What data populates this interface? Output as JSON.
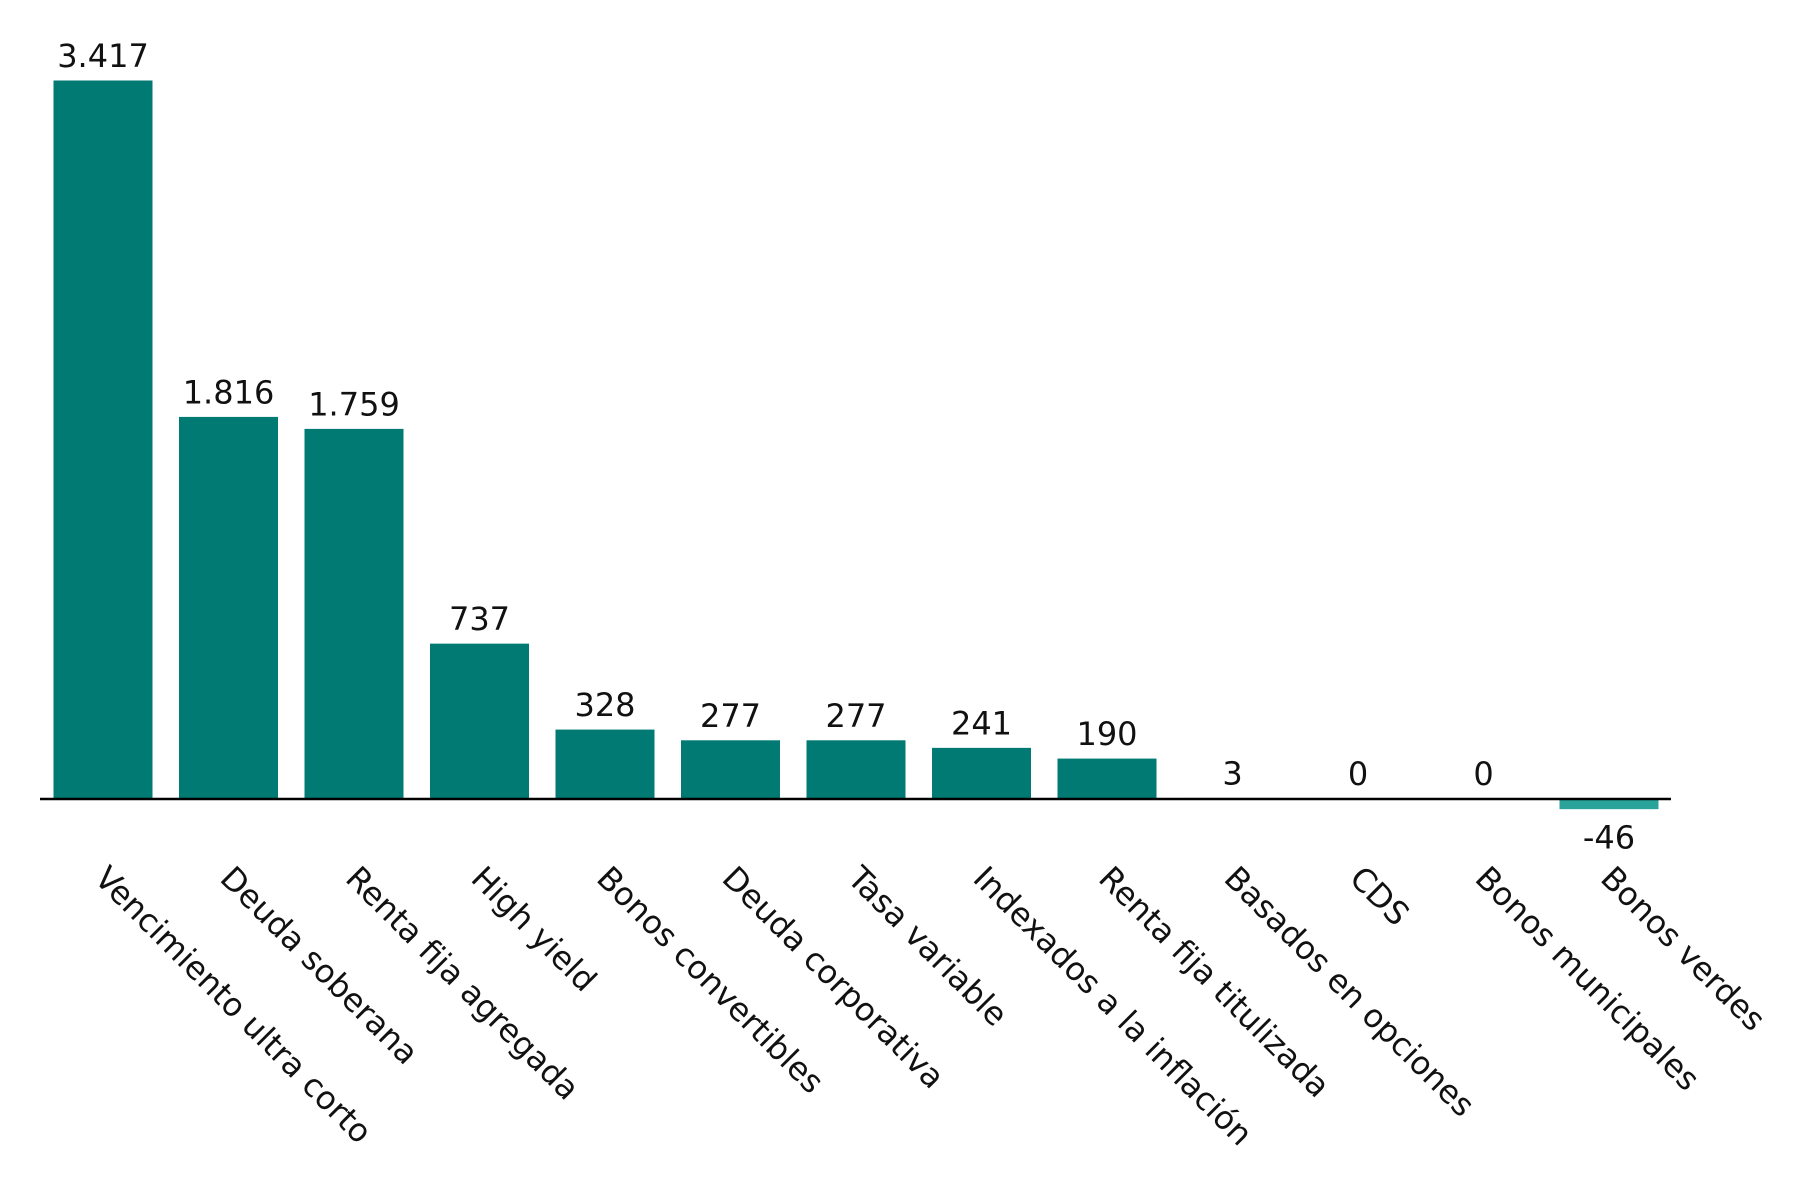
{
  "chart_data": {
    "type": "bar",
    "categories": [
      "Vencimiento ultra corto",
      "Deuda soberana",
      "Renta fija agregada",
      "High yield",
      "Bonos convertibles",
      "Deuda corporativa",
      "Tasa variable",
      "Indexados a la inflación",
      "Renta fija titulizada",
      "Basados en opciones",
      "CDS",
      "Bonos municipales",
      "Bonos verdes"
    ],
    "values": [
      3417,
      1816,
      1759,
      737,
      328,
      277,
      277,
      241,
      190,
      3,
      0,
      0,
      -46
    ],
    "value_labels": [
      "3.417",
      "1.816",
      "1.759",
      "737",
      "328",
      "277",
      "277",
      "241",
      "190",
      "3",
      "0",
      "0",
      "-46"
    ],
    "colors": [
      "#007a73",
      "#007a73",
      "#007a73",
      "#007a73",
      "#007a73",
      "#007a73",
      "#007a73",
      "#007a73",
      "#007a73",
      "#c8c8c8",
      "#c8c8c8",
      "#c8c8c8",
      "#2aa39a"
    ]
  }
}
